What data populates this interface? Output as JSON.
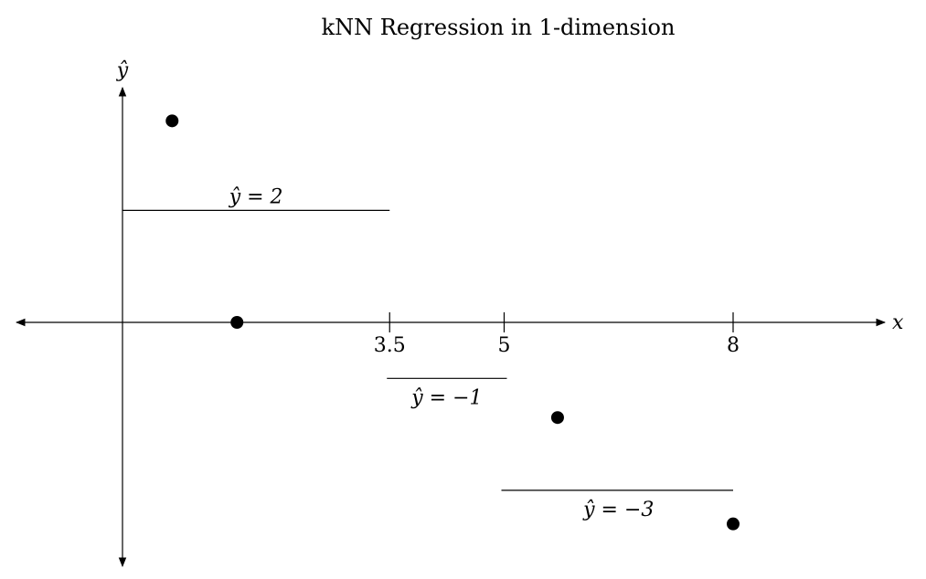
{
  "title": "kNN Regression in 1-dimension",
  "axes": {
    "x_label": "x",
    "y_label": "ŷ"
  },
  "ticks": [
    {
      "value": 3.5,
      "label": "3.5"
    },
    {
      "value": 5,
      "label": "5"
    },
    {
      "value": 8,
      "label": "8"
    }
  ],
  "segments": [
    {
      "x_start": 0,
      "x_end": 3.5,
      "y": 2,
      "label": "ŷ = 2"
    },
    {
      "x_start": 3.5,
      "x_end": 5,
      "y": -1,
      "label": "ŷ = −1"
    },
    {
      "x_start": 5,
      "x_end": 8,
      "y": -3,
      "label": "ŷ = −3"
    }
  ],
  "points": [
    {
      "x": 0.65,
      "y": 3.6
    },
    {
      "x": 1.5,
      "y": 0
    },
    {
      "x": 5.7,
      "y": -1.7
    },
    {
      "x": 8,
      "y": -3.6
    }
  ]
}
